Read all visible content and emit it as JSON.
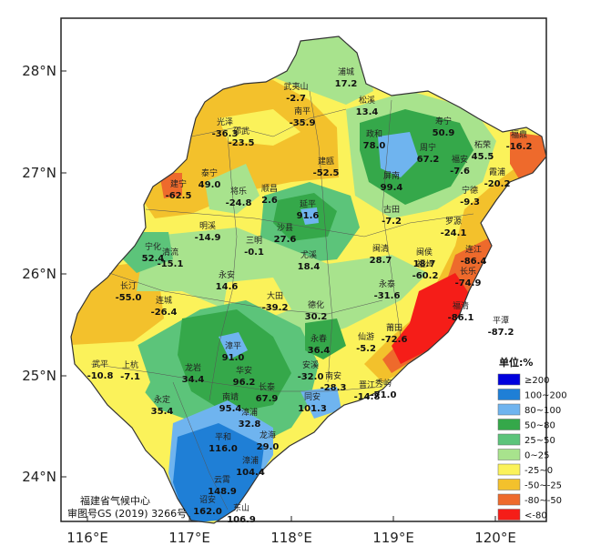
{
  "map": {
    "credit_line1": "福建省气候中心",
    "credit_line2": "审图号GS (2019) 3266号",
    "lon_labels": [
      "116°E",
      "117°E",
      "118°E",
      "119°E",
      "120°E"
    ],
    "lat_labels": [
      "28°N",
      "27°N",
      "26°N",
      "25°N",
      "24°N"
    ]
  },
  "legend": {
    "title": "单位:%",
    "items": [
      {
        "label": "≥200",
        "color": "#0000dd"
      },
      {
        "label": "100~200",
        "color": "#1f7fd6"
      },
      {
        "label": "80~100",
        "color": "#6fb4ef"
      },
      {
        "label": "50~80",
        "color": "#35a84a"
      },
      {
        "label": "25~50",
        "color": "#5cc47a"
      },
      {
        "label": "0~25",
        "color": "#a8e38d"
      },
      {
        "label": "-25~0",
        "color": "#fbf25a"
      },
      {
        "label": "-50~-25",
        "color": "#f3c12c"
      },
      {
        "label": "-80~-50",
        "color": "#ee6a2c"
      },
      {
        "label": "<-80",
        "color": "#f51d18"
      }
    ]
  },
  "stations": [
    {
      "name": "浦城",
      "value": "17.2"
    },
    {
      "name": "武夷山",
      "value": "-2.7"
    },
    {
      "name": "松溪",
      "value": "13.4"
    },
    {
      "name": "光泽",
      "value": "-36.3"
    },
    {
      "name": "邵武",
      "value": "-23.5"
    },
    {
      "name": "南平",
      "value": "-35.9"
    },
    {
      "name": "政和",
      "value": "78.0"
    },
    {
      "name": "寿宁",
      "value": "50.9"
    },
    {
      "name": "福鼎",
      "value": "-16.2"
    },
    {
      "name": "柘荣",
      "value": "45.5"
    },
    {
      "name": "周宁",
      "value": "67.2"
    },
    {
      "name": "福安",
      "value": "-7.6"
    },
    {
      "name": "建瓯",
      "value": "-52.5"
    },
    {
      "name": "屏南",
      "value": "99.4"
    },
    {
      "name": "霞浦",
      "value": "-20.2"
    },
    {
      "name": "泰宁",
      "value": "49.0"
    },
    {
      "name": "建宁",
      "value": "-62.5"
    },
    {
      "name": "将乐",
      "value": "-24.8"
    },
    {
      "name": "顺昌",
      "value": "2.6"
    },
    {
      "name": "延平",
      "value": "91.6"
    },
    {
      "name": "古田",
      "value": "-7.2"
    },
    {
      "name": "宁德",
      "value": "-9.3"
    },
    {
      "name": "罗源",
      "value": "-24.1"
    },
    {
      "name": "明溪",
      "value": "-14.9"
    },
    {
      "name": "沙县",
      "value": "27.6"
    },
    {
      "name": "三明",
      "value": "-0.1"
    },
    {
      "name": "宁化",
      "value": "52.4"
    },
    {
      "name": "清流",
      "value": "-15.1"
    },
    {
      "name": "尤溪",
      "value": "18.4"
    },
    {
      "name": "闽清",
      "value": "28.7"
    },
    {
      "name": "闽侯",
      "value": "18.7"
    },
    {
      "name": "连江",
      "value": "-86.4"
    },
    {
      "name": "福州",
      "value": "-60.2"
    },
    {
      "name": "长乐",
      "value": "-74.9"
    },
    {
      "name": "永安",
      "value": "14.6"
    },
    {
      "name": "长汀",
      "value": "-55.0"
    },
    {
      "name": "连城",
      "value": "-26.4"
    },
    {
      "name": "大田",
      "value": "-39.2"
    },
    {
      "name": "永泰",
      "value": "-31.6"
    },
    {
      "name": "福清",
      "value": "-86.1"
    },
    {
      "name": "平潭",
      "value": "-87.2"
    },
    {
      "name": "德化",
      "value": "30.2"
    },
    {
      "name": "永春",
      "value": "36.4"
    },
    {
      "name": "仙游",
      "value": "-5.2"
    },
    {
      "name": "莆田",
      "value": "-72.6"
    },
    {
      "name": "漳平",
      "value": "91.0"
    },
    {
      "name": "武平",
      "value": "-10.8"
    },
    {
      "name": "上杭",
      "value": "-7.1"
    },
    {
      "name": "龙岩",
      "value": "34.4"
    },
    {
      "name": "华安",
      "value": "96.2"
    },
    {
      "name": "安溪",
      "value": "-32.0"
    },
    {
      "name": "南安",
      "value": "-28.3"
    },
    {
      "name": "晋江",
      "value": "-14.8"
    },
    {
      "name": "秀屿",
      "value": "-71.0"
    },
    {
      "name": "永定",
      "value": "35.4"
    },
    {
      "name": "长泰",
      "value": "67.9"
    },
    {
      "name": "南靖",
      "value": "95.4"
    },
    {
      "name": "漳浦",
      "value": "32.8"
    },
    {
      "name": "同安",
      "value": "101.3"
    },
    {
      "name": "龙海",
      "value": "29.0"
    },
    {
      "name": "平和",
      "value": "116.0"
    },
    {
      "name": "漳浦",
      "value": "104.4"
    },
    {
      "name": "云霄",
      "value": "148.9"
    },
    {
      "name": "诏安",
      "value": "162.0"
    },
    {
      "name": "东山",
      "value": "106.9"
    }
  ]
}
